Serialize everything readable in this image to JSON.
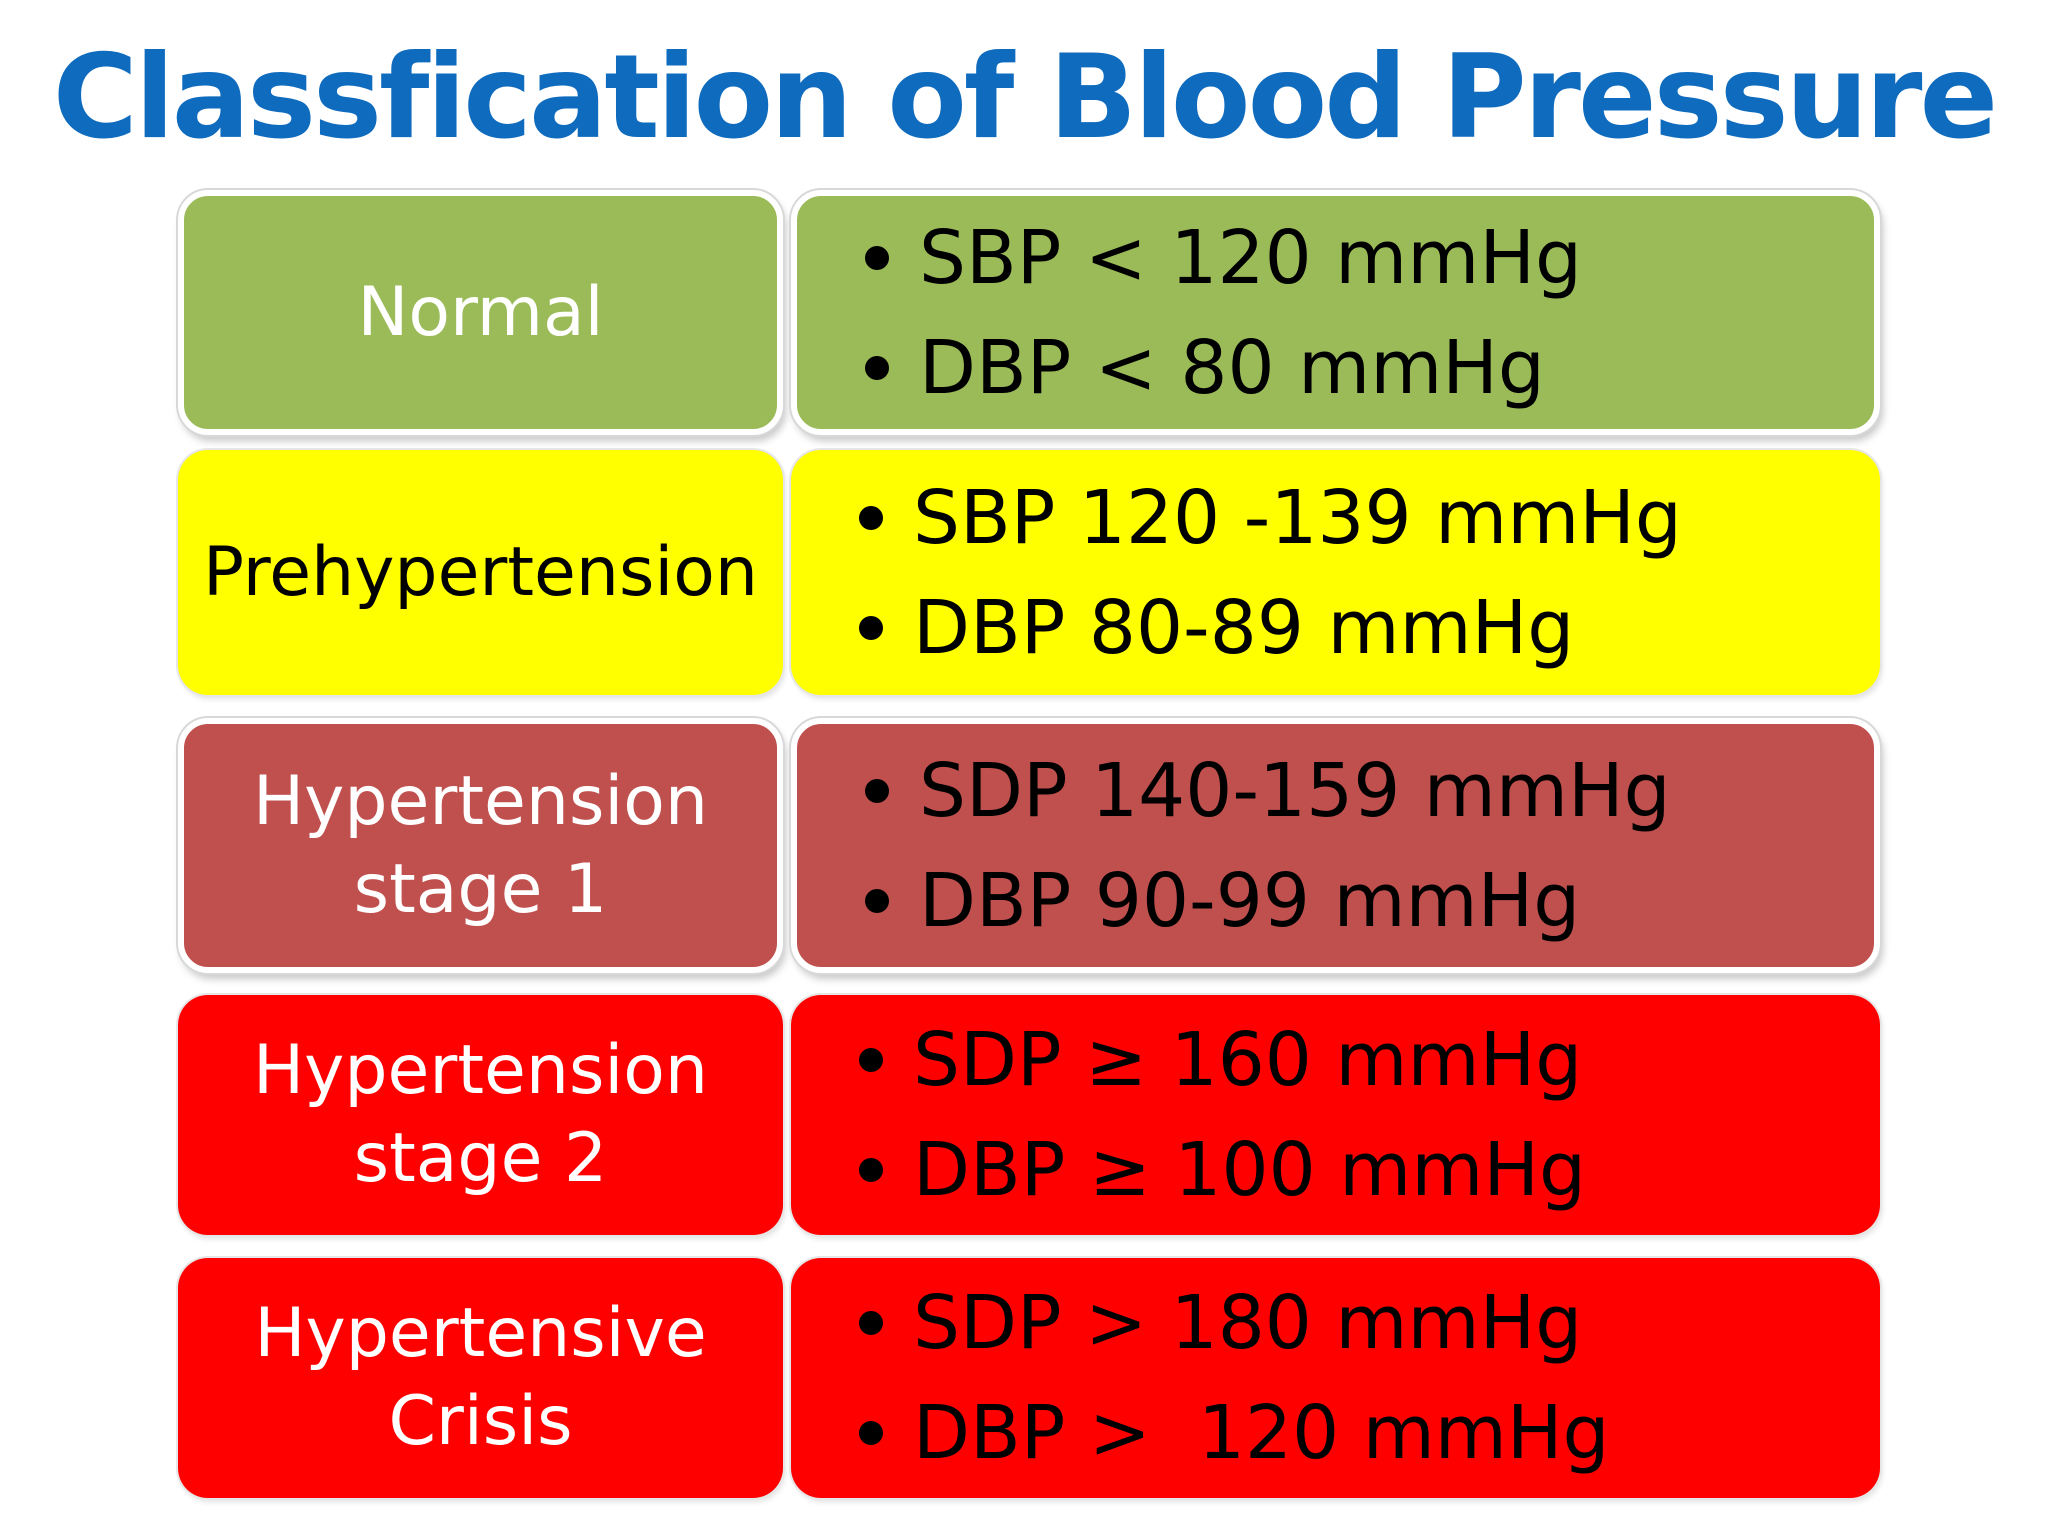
{
  "title": "Classfication of Blood Pressure",
  "rows": [
    {
      "category": "Normal",
      "systolic": "SBP < 120 mmHg",
      "diastolic": "DBP < 80 mmHg",
      "bg_color": "#9bbb59",
      "label_color": "#ffffff"
    },
    {
      "category": "Prehypertension",
      "systolic": "SBP 120 -139 mmHg",
      "diastolic": "DBP 80-89 mmHg",
      "bg_color": "#ffff00",
      "label_color": "#000000"
    },
    {
      "category": "Hypertension\nstage 1",
      "systolic": "SDP 140-159 mmHg",
      "diastolic": "DBP 90-99 mmHg",
      "bg_color": "#c0504d",
      "label_color": "#ffffff"
    },
    {
      "category": "Hypertension\nstage 2",
      "systolic": "SDP ≥ 160 mmHg",
      "diastolic": "DBP ≥ 100 mmHg",
      "bg_color": "#ff0000",
      "label_color": "#ffffff"
    },
    {
      "category": "Hypertensive\nCrisis",
      "systolic": "SDP > 180 mmHg",
      "diastolic": "DBP >  120 mmHg",
      "bg_color": "#ff0000",
      "label_color": "#ffffff"
    }
  ]
}
